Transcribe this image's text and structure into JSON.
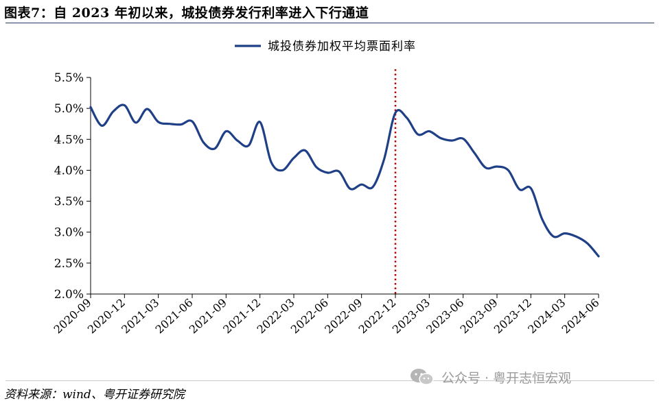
{
  "figure_title": "图表7：自 2023 年初以来，城投债券发行利率进入下行通道",
  "source_note": "资料来源：wind、粤开证券研究院",
  "watermark": {
    "text": "公众号 · 粤开志恒宏观",
    "icon": "wechat-icon"
  },
  "chart_data": {
    "type": "line",
    "title": "",
    "xlabel": "",
    "ylabel": "",
    "ylim": [
      0.02,
      0.055
    ],
    "yticks": [
      "2.0%",
      "2.5%",
      "3.0%",
      "3.5%",
      "4.0%",
      "4.5%",
      "5.0%",
      "5.5%"
    ],
    "xticks": [
      "2020-09",
      "2020-12",
      "2021-03",
      "2021-06",
      "2021-09",
      "2021-12",
      "2022-03",
      "2022-06",
      "2022-09",
      "2022-12",
      "2023-03",
      "2023-06",
      "2023-09",
      "2023-12",
      "2024-03",
      "2024-06"
    ],
    "grid": false,
    "legend_position": "top",
    "series": [
      {
        "name": "城投债券加权平均票面利率",
        "color": "#1f3f86",
        "x": [
          "2020-09",
          "2020-10",
          "2020-11",
          "2020-12",
          "2021-01",
          "2021-02",
          "2021-03",
          "2021-04",
          "2021-05",
          "2021-06",
          "2021-07",
          "2021-08",
          "2021-09",
          "2021-10",
          "2021-11",
          "2021-12",
          "2022-01",
          "2022-02",
          "2022-03",
          "2022-04",
          "2022-05",
          "2022-06",
          "2022-07",
          "2022-08",
          "2022-09",
          "2022-10",
          "2022-11",
          "2022-12",
          "2023-01",
          "2023-02",
          "2023-03",
          "2023-04",
          "2023-05",
          "2023-06",
          "2023-07",
          "2023-08",
          "2023-09",
          "2023-10",
          "2023-11",
          "2023-12",
          "2024-01",
          "2024-02",
          "2024-03",
          "2024-04",
          "2024-05",
          "2024-06"
        ],
        "values": [
          0.0502,
          0.0472,
          0.0495,
          0.0505,
          0.0477,
          0.0499,
          0.0478,
          0.0475,
          0.0474,
          0.0479,
          0.0445,
          0.0435,
          0.0463,
          0.0448,
          0.044,
          0.0478,
          0.0413,
          0.04,
          0.042,
          0.0432,
          0.0405,
          0.0396,
          0.0398,
          0.037,
          0.0377,
          0.0373,
          0.0418,
          0.0493,
          0.0485,
          0.0458,
          0.0463,
          0.0452,
          0.0448,
          0.0451,
          0.0428,
          0.0404,
          0.0406,
          0.04,
          0.0369,
          0.0371,
          0.0321,
          0.0293,
          0.0298,
          0.0293,
          0.0282,
          0.0261
        ]
      }
    ],
    "annotations": [
      {
        "type": "vertical-dotted-line",
        "x": "2022-12",
        "color": "#c00000"
      }
    ]
  }
}
